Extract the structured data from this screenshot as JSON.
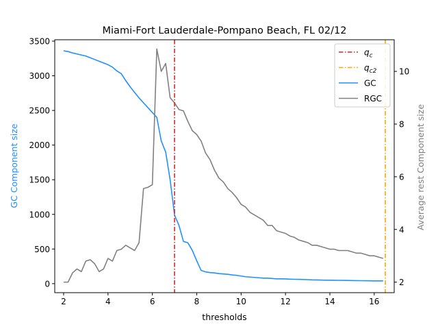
{
  "chart_data": {
    "type": "line",
    "title": "Miami-Fort Lauderdale-Pompano Beach, FL 02/12",
    "xlabel": "thresholds",
    "ylabel_left": "GC Component size",
    "ylabel_right": "Average rest Component size",
    "xlim": [
      1.6,
      16.9
    ],
    "ylim_left": [
      -130,
      3520
    ],
    "ylim_right": [
      1.6,
      11.2
    ],
    "x_ticks": [
      2,
      4,
      6,
      8,
      10,
      12,
      14,
      16
    ],
    "y_ticks_left": [
      0,
      500,
      1000,
      1500,
      2000,
      2500,
      3000,
      3500
    ],
    "y_ticks_right": [
      2,
      4,
      6,
      8,
      10
    ],
    "grid": false,
    "legend_position": "top-right",
    "vlines": [
      {
        "name": "q_c",
        "x": 7.0,
        "color": "#d62728",
        "style": "dash-dot"
      },
      {
        "name": "q_c2",
        "x": 16.5,
        "color": "#ffa500",
        "style": "dash-dot"
      }
    ],
    "legend": [
      {
        "label": "q",
        "sub": "c",
        "color": "#d62728",
        "style": "dash-dot"
      },
      {
        "label": "q",
        "sub": "c2",
        "color": "#ffa500",
        "style": "dash-dot"
      },
      {
        "label": "GC",
        "color": "#1e90ff",
        "style": "solid"
      },
      {
        "label": "RGC",
        "color": "#808080",
        "style": "solid"
      }
    ],
    "series": [
      {
        "name": "GC",
        "axis": "left",
        "color": "#1e90ff",
        "x": [
          2.0,
          2.2,
          2.4,
          2.6,
          2.8,
          3.0,
          3.2,
          3.4,
          3.6,
          3.8,
          4.0,
          4.2,
          4.4,
          4.6,
          4.8,
          5.0,
          5.2,
          5.4,
          5.6,
          5.8,
          6.0,
          6.2,
          6.4,
          6.6,
          6.8,
          7.0,
          7.2,
          7.4,
          7.6,
          7.8,
          8.0,
          8.2,
          8.4,
          8.6,
          8.8,
          9.0,
          9.2,
          9.4,
          9.6,
          9.8,
          10.0,
          10.2,
          10.4,
          10.6,
          10.8,
          11.0,
          11.2,
          11.4,
          11.6,
          11.8,
          12.0,
          12.2,
          12.4,
          12.6,
          12.8,
          13.0,
          13.2,
          13.4,
          13.6,
          13.8,
          14.0,
          14.2,
          14.4,
          14.6,
          14.8,
          15.0,
          15.2,
          15.4,
          15.6,
          15.8,
          16.0,
          16.2,
          16.4
        ],
        "values": [
          3360,
          3350,
          3330,
          3315,
          3300,
          3285,
          3260,
          3235,
          3210,
          3185,
          3160,
          3125,
          3070,
          3030,
          2930,
          2840,
          2760,
          2680,
          2610,
          2540,
          2470,
          2400,
          2060,
          1900,
          1500,
          990,
          840,
          610,
          590,
          480,
          330,
          190,
          170,
          160,
          155,
          145,
          140,
          135,
          125,
          120,
          110,
          100,
          95,
          90,
          85,
          80,
          80,
          75,
          70,
          70,
          68,
          65,
          63,
          62,
          60,
          58,
          55,
          54,
          52,
          50,
          50,
          49,
          48,
          47,
          46,
          45,
          44,
          43,
          42,
          41,
          40,
          40,
          40
        ]
      },
      {
        "name": "RGC",
        "axis": "right",
        "color": "#808080",
        "x": [
          2.0,
          2.2,
          2.4,
          2.6,
          2.8,
          3.0,
          3.2,
          3.4,
          3.6,
          3.8,
          4.0,
          4.2,
          4.4,
          4.6,
          4.8,
          5.0,
          5.2,
          5.4,
          5.6,
          5.8,
          6.0,
          6.2,
          6.4,
          6.6,
          6.8,
          7.0,
          7.2,
          7.4,
          7.6,
          7.8,
          8.0,
          8.2,
          8.4,
          8.6,
          8.8,
          9.0,
          9.2,
          9.4,
          9.6,
          9.8,
          10.0,
          10.2,
          10.4,
          10.6,
          10.8,
          11.0,
          11.2,
          11.4,
          11.6,
          11.8,
          12.0,
          12.2,
          12.4,
          12.6,
          12.8,
          13.0,
          13.2,
          13.4,
          13.6,
          13.8,
          14.0,
          14.2,
          14.4,
          14.6,
          14.8,
          15.0,
          15.2,
          15.4,
          15.6,
          15.8,
          16.0,
          16.2,
          16.4
        ],
        "values": [
          2.0,
          2.0,
          2.35,
          2.5,
          2.4,
          2.8,
          2.85,
          2.7,
          2.4,
          2.5,
          2.9,
          2.8,
          3.2,
          3.25,
          3.4,
          3.3,
          3.2,
          3.5,
          5.55,
          5.6,
          5.7,
          10.85,
          10.0,
          10.3,
          9.0,
          8.8,
          8.55,
          8.5,
          8.1,
          7.75,
          7.6,
          7.35,
          6.9,
          6.65,
          6.25,
          5.95,
          5.8,
          5.55,
          5.4,
          5.2,
          4.95,
          4.85,
          4.65,
          4.55,
          4.45,
          4.35,
          4.15,
          4.15,
          3.95,
          3.9,
          3.85,
          3.75,
          3.7,
          3.6,
          3.55,
          3.5,
          3.4,
          3.4,
          3.35,
          3.3,
          3.25,
          3.25,
          3.2,
          3.2,
          3.2,
          3.15,
          3.1,
          3.1,
          3.05,
          3.0,
          3.0,
          2.95,
          2.9
        ]
      }
    ]
  }
}
